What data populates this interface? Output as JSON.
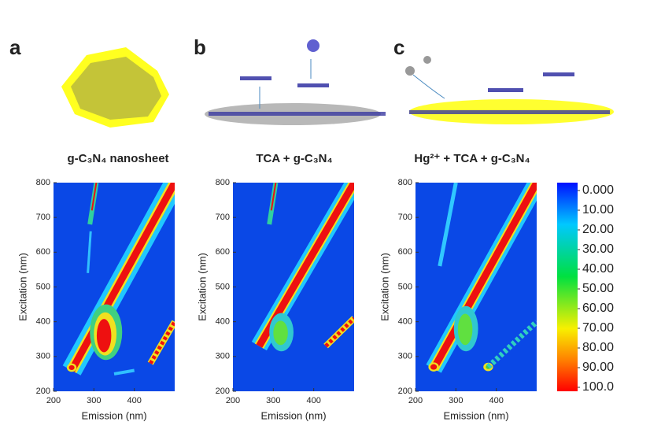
{
  "chart_data": [
    {
      "type": "heatmap",
      "panel": "a",
      "title": "g-C₃N₄ nanosheet",
      "xlabel": "Emission (nm)",
      "ylabel": "Excitation (nm)",
      "xlim": [
        200,
        500
      ],
      "ylim": [
        200,
        800
      ],
      "xticks": [
        200,
        300,
        400
      ],
      "yticks": [
        200,
        300,
        400,
        500,
        600,
        700,
        800
      ]
    },
    {
      "type": "heatmap",
      "panel": "b",
      "title": "TCA + g-C₃N₄",
      "xlabel": "Emission (nm)",
      "ylabel": "Excitation (nm)",
      "xlim": [
        200,
        500
      ],
      "ylim": [
        200,
        800
      ],
      "xticks": [
        200,
        300,
        400
      ],
      "yticks": [
        200,
        300,
        400,
        500,
        600,
        700,
        800
      ]
    },
    {
      "type": "heatmap",
      "panel": "c",
      "title": "Hg²⁺ + TCA + g-C₃N₄",
      "xlabel": "Emission (nm)",
      "ylabel": "Excitation (nm)",
      "xlim": [
        200,
        500
      ],
      "ylim": [
        200,
        800
      ],
      "xticks": [
        200,
        300,
        400
      ],
      "yticks": [
        200,
        300,
        400,
        500,
        600,
        700,
        800
      ]
    }
  ],
  "colorbar": {
    "lim": [
      0,
      100
    ],
    "ticks": [
      {
        "value": 0,
        "label": "0.000"
      },
      {
        "value": 10,
        "label": "10.00"
      },
      {
        "value": 20,
        "label": "20.00"
      },
      {
        "value": 30,
        "label": "30.00"
      },
      {
        "value": 40,
        "label": "40.00"
      },
      {
        "value": 50,
        "label": "50.00"
      },
      {
        "value": 60,
        "label": "60.00"
      },
      {
        "value": 70,
        "label": "70.00"
      },
      {
        "value": 80,
        "label": "80.00"
      },
      {
        "value": 90,
        "label": "90.00"
      },
      {
        "value": 100,
        "label": "100.0"
      }
    ]
  }
}
